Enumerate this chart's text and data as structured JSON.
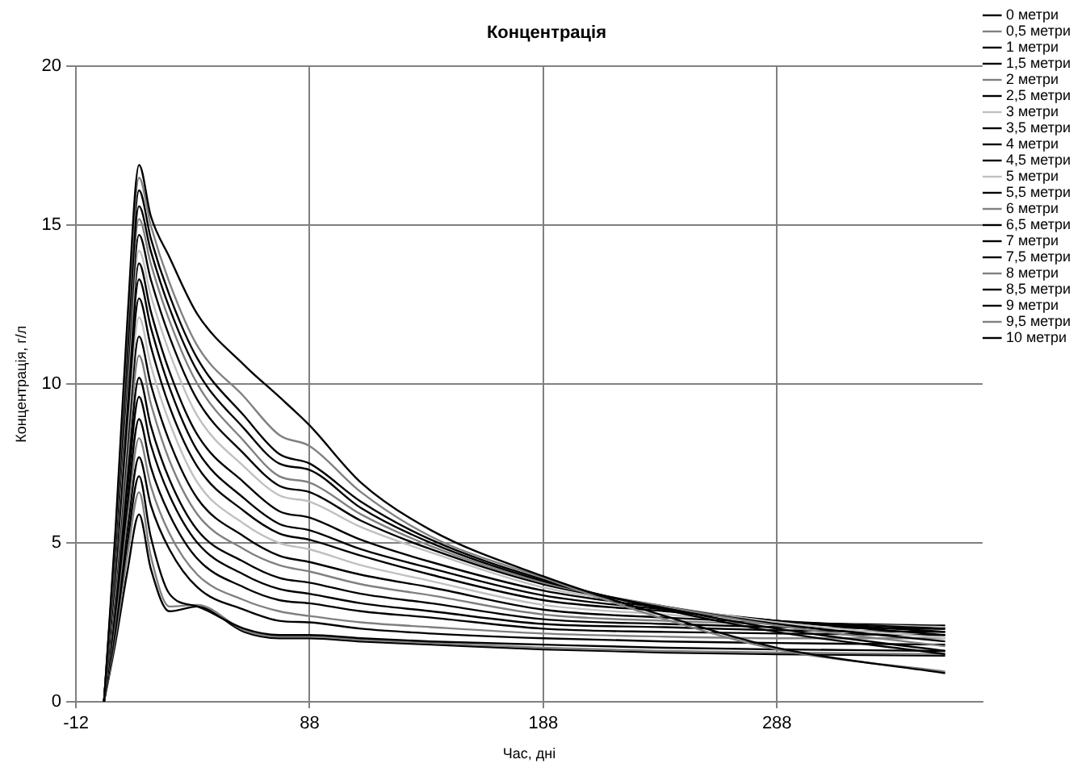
{
  "chart_data": {
    "type": "line",
    "title": "Концентрація",
    "xlabel": "Час, дні",
    "ylabel": "Концентрація, г/л",
    "x": [
      0,
      5,
      10,
      15,
      20,
      28,
      40,
      60,
      75,
      88,
      110,
      140,
      188,
      240,
      288,
      360
    ],
    "xlim": [
      -12,
      376
    ],
    "xticks": [
      -12,
      88,
      188,
      288
    ],
    "ylim": [
      0,
      20
    ],
    "yticks": [
      0,
      5,
      10,
      15,
      20
    ],
    "grid": true,
    "legend": "right",
    "marker": "none",
    "line_style": "solid",
    "series": [
      {
        "name": "0 метри",
        "color": "#000000",
        "values": [
          0,
          5.5,
          12,
          16.9,
          15.3,
          14.0,
          12.2,
          10.6,
          9.6,
          8.7,
          6.9,
          5.4,
          3.95,
          2.7,
          1.7,
          0.9
        ]
      },
      {
        "name": "0,5 метри",
        "color": "#808080",
        "values": [
          0,
          5.3,
          11.7,
          16.5,
          15.0,
          13.2,
          11.2,
          9.6,
          8.4,
          8.05,
          6.6,
          5.2,
          3.9,
          2.6,
          1.65,
          0.95
        ]
      },
      {
        "name": "1 метри",
        "color": "#000000",
        "values": [
          0,
          5.2,
          11.4,
          16.1,
          14.6,
          12.8,
          10.8,
          9.0,
          7.8,
          7.5,
          6.3,
          5.1,
          3.85,
          2.9,
          2.2,
          1.5
        ]
      },
      {
        "name": "1,5 метри",
        "color": "#000000",
        "values": [
          0,
          5.0,
          11.0,
          15.6,
          14.2,
          12.4,
          10.4,
          8.6,
          7.5,
          7.3,
          6.1,
          5.0,
          3.8,
          2.95,
          2.3,
          1.6
        ]
      },
      {
        "name": "2 метри",
        "color": "#808080",
        "values": [
          0,
          4.9,
          10.7,
          15.2,
          13.8,
          12.0,
          10.0,
          8.2,
          7.1,
          6.9,
          5.9,
          4.9,
          3.75,
          3.0,
          2.4,
          1.75
        ]
      },
      {
        "name": "2,5 метри",
        "color": "#000000",
        "values": [
          0,
          4.7,
          10.3,
          14.7,
          13.3,
          11.5,
          9.5,
          7.8,
          6.8,
          6.6,
          5.7,
          4.8,
          3.7,
          3.0,
          2.45,
          1.9
        ]
      },
      {
        "name": "3 метри",
        "color": "#c0c0c0",
        "values": [
          0,
          4.6,
          10.0,
          14.2,
          12.8,
          11.0,
          9.0,
          7.4,
          6.5,
          6.3,
          5.5,
          4.7,
          3.6,
          3.0,
          2.5,
          2.0
        ]
      },
      {
        "name": "3,5 метри",
        "color": "#000000",
        "values": [
          0,
          4.4,
          9.7,
          13.8,
          12.3,
          10.4,
          8.4,
          6.9,
          6.0,
          5.8,
          5.1,
          4.4,
          3.5,
          2.95,
          2.55,
          2.1
        ]
      },
      {
        "name": "4 метри",
        "color": "#000000",
        "values": [
          0,
          4.3,
          9.3,
          13.3,
          11.8,
          9.9,
          7.9,
          6.4,
          5.6,
          5.4,
          4.8,
          4.2,
          3.35,
          2.9,
          2.55,
          2.2
        ]
      },
      {
        "name": "4,5 метри",
        "color": "#000000",
        "values": [
          0,
          4.1,
          8.9,
          12.7,
          11.2,
          9.3,
          7.4,
          6.0,
          5.3,
          5.1,
          4.6,
          4.0,
          3.2,
          2.85,
          2.55,
          2.3
        ]
      },
      {
        "name": "5 метри",
        "color": "#c0c0c0",
        "values": [
          0,
          3.9,
          8.5,
          12.1,
          10.6,
          8.8,
          6.9,
          5.6,
          5.0,
          4.8,
          4.3,
          3.8,
          3.05,
          2.75,
          2.5,
          2.35
        ]
      },
      {
        "name": "5,5 метри",
        "color": "#000000",
        "values": [
          0,
          3.7,
          8.1,
          11.5,
          10.0,
          8.2,
          6.4,
          5.2,
          4.6,
          4.4,
          4.0,
          3.6,
          2.9,
          2.65,
          2.5,
          2.4
        ]
      },
      {
        "name": "6 метри",
        "color": "#808080",
        "values": [
          0,
          3.5,
          7.6,
          10.9,
          9.4,
          7.6,
          5.9,
          4.8,
          4.3,
          4.1,
          3.7,
          3.35,
          2.75,
          2.55,
          2.45,
          2.35
        ]
      },
      {
        "name": "6,5 метри",
        "color": "#000000",
        "values": [
          0,
          3.3,
          7.1,
          10.2,
          8.7,
          7.0,
          5.4,
          4.4,
          3.9,
          3.75,
          3.4,
          3.1,
          2.6,
          2.45,
          2.35,
          2.3
        ]
      },
      {
        "name": "7 метри",
        "color": "#000000",
        "values": [
          0,
          3.1,
          6.7,
          9.6,
          8.1,
          6.5,
          5.0,
          4.0,
          3.55,
          3.4,
          3.1,
          2.85,
          2.45,
          2.35,
          2.25,
          2.2
        ]
      },
      {
        "name": "7,5 метри",
        "color": "#000000",
        "values": [
          0,
          2.9,
          6.2,
          8.9,
          7.4,
          5.9,
          4.5,
          3.6,
          3.2,
          3.1,
          2.85,
          2.65,
          2.3,
          2.2,
          2.15,
          2.1
        ]
      },
      {
        "name": "8 метри",
        "color": "#808080",
        "values": [
          0,
          2.7,
          5.8,
          8.3,
          6.8,
          5.3,
          4.0,
          3.2,
          2.85,
          2.7,
          2.5,
          2.35,
          2.15,
          2.05,
          2.0,
          2.0
        ]
      },
      {
        "name": "8,5 метри",
        "color": "#000000",
        "values": [
          0,
          2.5,
          5.4,
          7.7,
          6.2,
          4.8,
          3.6,
          2.9,
          2.55,
          2.5,
          2.3,
          2.15,
          2.0,
          1.9,
          1.85,
          1.8
        ]
      },
      {
        "name": "9 метри",
        "color": "#000000",
        "values": [
          0,
          2.3,
          5.0,
          7.1,
          5.2,
          3.4,
          3.0,
          2.3,
          2.1,
          2.1,
          2.0,
          1.9,
          1.8,
          1.7,
          1.65,
          1.6
        ]
      },
      {
        "name": "9,5 метри",
        "color": "#808080",
        "values": [
          0,
          2.1,
          4.6,
          6.6,
          4.6,
          3.0,
          3.05,
          2.25,
          2.05,
          2.05,
          1.95,
          1.85,
          1.7,
          1.6,
          1.55,
          1.5
        ]
      },
      {
        "name": "10 метри",
        "color": "#000000",
        "values": [
          0,
          1.9,
          4.1,
          5.9,
          4.2,
          2.85,
          3.0,
          2.2,
          2.0,
          2.0,
          1.9,
          1.8,
          1.65,
          1.55,
          1.5,
          1.45
        ]
      }
    ]
  }
}
